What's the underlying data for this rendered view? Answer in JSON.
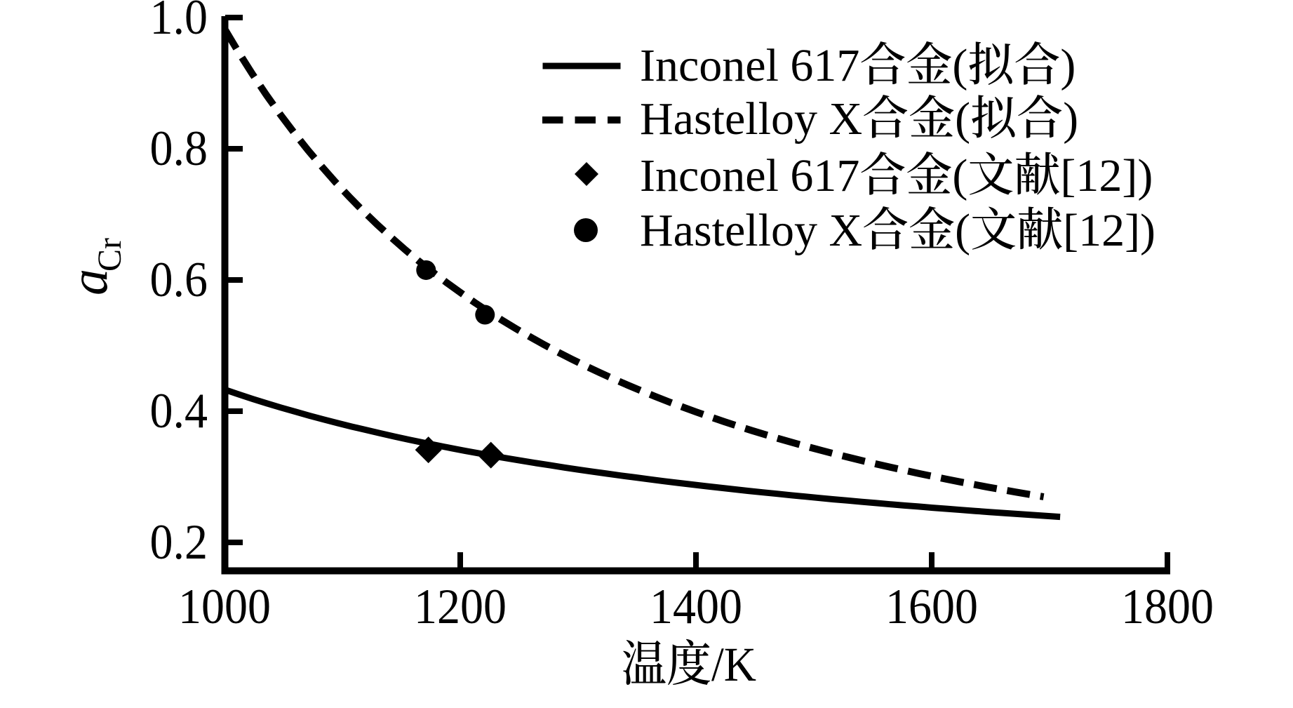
{
  "figure": {
    "background_color": "#ffffff",
    "ink_color": "#000000"
  },
  "chart_data": {
    "type": "line",
    "title": "",
    "xlabel": "温度/K",
    "ylabel_main": "a",
    "ylabel_sub": "Cr",
    "xlim": [
      1000,
      1800
    ],
    "ylim": [
      0.15,
      1.0
    ],
    "grid": false,
    "legend_position": "upper right",
    "x_ticks": [
      1000,
      1200,
      1400,
      1600,
      1800
    ],
    "x_tick_labels": [
      "1000",
      "1200",
      "1400",
      "1600",
      "1800"
    ],
    "y_ticks": [
      0.2,
      0.4,
      0.6,
      0.8,
      1.0
    ],
    "y_tick_labels": [
      "0.2",
      "0.4",
      "0.6",
      "0.8",
      "1.0"
    ],
    "series": [
      {
        "name": "Inconel 617合金(拟合)",
        "kind": "line",
        "line_style": "solid",
        "color": "#000000",
        "points": [
          [
            1000,
            0.433
          ],
          [
            1012.0,
            0.4257
          ],
          [
            1024.0,
            0.4186
          ],
          [
            1036.1,
            0.4119
          ],
          [
            1048.1,
            0.4054
          ],
          [
            1060.1,
            0.3992
          ],
          [
            1072.1,
            0.3932
          ],
          [
            1084.1,
            0.3874
          ],
          [
            1096.1,
            0.3818
          ],
          [
            1108.2,
            0.3764
          ],
          [
            1120.2,
            0.3713
          ],
          [
            1132.2,
            0.3663
          ],
          [
            1144.2,
            0.3614
          ],
          [
            1156.2,
            0.3567
          ],
          [
            1168.2,
            0.3522
          ],
          [
            1180.3,
            0.3479
          ],
          [
            1192.3,
            0.3436
          ],
          [
            1204.3,
            0.3395
          ],
          [
            1216.3,
            0.3356
          ],
          [
            1228.3,
            0.3317
          ],
          [
            1240.3,
            0.328
          ],
          [
            1252.4,
            0.3244
          ],
          [
            1264.4,
            0.3209
          ],
          [
            1276.4,
            0.3175
          ],
          [
            1288.4,
            0.3141
          ],
          [
            1300.4,
            0.3109
          ],
          [
            1312.4,
            0.3078
          ],
          [
            1324.5,
            0.3048
          ],
          [
            1336.5,
            0.3018
          ],
          [
            1348.5,
            0.299
          ],
          [
            1360.5,
            0.2962
          ],
          [
            1372.5,
            0.2934
          ],
          [
            1384.5,
            0.2908
          ],
          [
            1396.6,
            0.2882
          ],
          [
            1408.6,
            0.2857
          ],
          [
            1420.6,
            0.2833
          ],
          [
            1432.6,
            0.2809
          ],
          [
            1444.6,
            0.2785
          ],
          [
            1456.6,
            0.2763
          ],
          [
            1468.7,
            0.2741
          ],
          [
            1480.7,
            0.2719
          ],
          [
            1492.7,
            0.2698
          ],
          [
            1504.7,
            0.2677
          ],
          [
            1516.7,
            0.2657
          ],
          [
            1528.7,
            0.2638
          ],
          [
            1540.8,
            0.2618
          ],
          [
            1552.8,
            0.26
          ],
          [
            1564.8,
            0.2581
          ],
          [
            1576.8,
            0.2563
          ],
          [
            1588.8,
            0.2546
          ],
          [
            1600.8,
            0.2528
          ],
          [
            1612.9,
            0.2512
          ],
          [
            1624.9,
            0.2495
          ],
          [
            1636.9,
            0.2479
          ],
          [
            1648.9,
            0.2463
          ],
          [
            1660.9,
            0.2448
          ],
          [
            1672.9,
            0.2433
          ],
          [
            1685.0,
            0.2418
          ],
          [
            1697.0,
            0.2403
          ],
          [
            1709,
            0.2389
          ]
        ]
      },
      {
        "name": "Hastelloy X合金(拟合)",
        "kind": "line",
        "line_style": "dashed",
        "color": "#000000",
        "points": [
          [
            1000,
            0.983
          ],
          [
            1011.8,
            0.9475
          ],
          [
            1023.6,
            0.9141
          ],
          [
            1035.3,
            0.8826
          ],
          [
            1047.1,
            0.8528
          ],
          [
            1058.9,
            0.8247
          ],
          [
            1070.7,
            0.7981
          ],
          [
            1082.5,
            0.7729
          ],
          [
            1094.2,
            0.749
          ],
          [
            1106.0,
            0.7264
          ],
          [
            1117.8,
            0.7048
          ],
          [
            1129.6,
            0.6844
          ],
          [
            1141.4,
            0.6649
          ],
          [
            1153.1,
            0.6464
          ],
          [
            1164.9,
            0.6288
          ],
          [
            1176.7,
            0.612
          ],
          [
            1188.5,
            0.5959
          ],
          [
            1200.3,
            0.5806
          ],
          [
            1212.0,
            0.5659
          ],
          [
            1223.8,
            0.5519
          ],
          [
            1235.6,
            0.5385
          ],
          [
            1247.4,
            0.5257
          ],
          [
            1259.2,
            0.5134
          ],
          [
            1270.9,
            0.5016
          ],
          [
            1282.7,
            0.4903
          ],
          [
            1294.5,
            0.4794
          ],
          [
            1306.3,
            0.469
          ],
          [
            1318.1,
            0.459
          ],
          [
            1329.8,
            0.4494
          ],
          [
            1341.6,
            0.4401
          ],
          [
            1353.4,
            0.4312
          ],
          [
            1365.2,
            0.4226
          ],
          [
            1376.9,
            0.4143
          ],
          [
            1388.7,
            0.4063
          ],
          [
            1400.5,
            0.3986
          ],
          [
            1412.3,
            0.3912
          ],
          [
            1424.1,
            0.384
          ],
          [
            1435.8,
            0.3771
          ],
          [
            1447.6,
            0.3704
          ],
          [
            1459.4,
            0.364
          ],
          [
            1471.2,
            0.3577
          ],
          [
            1483.0,
            0.3517
          ],
          [
            1494.7,
            0.3458
          ],
          [
            1506.5,
            0.3402
          ],
          [
            1518.3,
            0.3347
          ],
          [
            1530.1,
            0.3294
          ],
          [
            1541.9,
            0.3242
          ],
          [
            1553.6,
            0.3192
          ],
          [
            1565.4,
            0.3144
          ],
          [
            1577.2,
            0.3097
          ],
          [
            1589.0,
            0.3051
          ],
          [
            1600.8,
            0.3007
          ],
          [
            1612.5,
            0.2964
          ],
          [
            1624.3,
            0.2922
          ],
          [
            1636.1,
            0.2882
          ],
          [
            1647.9,
            0.2842
          ],
          [
            1659.7,
            0.2804
          ],
          [
            1671.4,
            0.2767
          ],
          [
            1683.2,
            0.273
          ],
          [
            1695,
            0.2695
          ]
        ]
      },
      {
        "name": "Inconel 617合金(文献[12])",
        "kind": "scatter",
        "marker": "diamond",
        "color": "#000000",
        "points": [
          [
            1173,
            0.341
          ],
          [
            1226,
            0.333
          ]
        ]
      },
      {
        "name": "Hastelloy X合金(文献[12])",
        "kind": "scatter",
        "marker": "circle",
        "color": "#000000",
        "points": [
          [
            1171,
            0.615
          ],
          [
            1221,
            0.547
          ]
        ]
      }
    ]
  },
  "legend": {
    "items": [
      {
        "label": "Inconel 617合金(拟合)",
        "symbol": "solid-line"
      },
      {
        "label": "Hastelloy X合金(拟合)",
        "symbol": "dashed-line"
      },
      {
        "label": "Inconel 617合金(文献[12])",
        "symbol": "diamond"
      },
      {
        "label": "Hastelloy X合金(文献[12])",
        "symbol": "circle"
      }
    ]
  }
}
